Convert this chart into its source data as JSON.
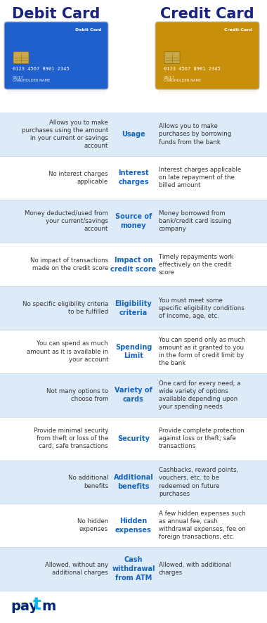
{
  "title_left": "Debit Card",
  "title_right": "Credit Card",
  "title_color": "#1a237e",
  "middle_color": "#1565c0",
  "left_text_color": "#333333",
  "right_text_color": "#333333",
  "rows": [
    {
      "middle": "Usage",
      "left": "Allows you to make\npurchases using the amount\nin your current or savings\naccount",
      "right": "Allows you to make\npurchases by borrowing\nfunds from the bank",
      "bg": "#ddeaf8"
    },
    {
      "middle": "Interest\ncharges",
      "left": "No interest charges\napplicable",
      "right": "Interest charges applicable\non late repayment of the\nbilled amount",
      "bg": "#ffffff"
    },
    {
      "middle": "Source of\nmoney",
      "left": "Money deducted/used from\nyour current/savings\naccount",
      "right": "Money borrowed from\nbank/credit card issuing\ncompany",
      "bg": "#ddeaf8"
    },
    {
      "middle": "Impact on\ncredit score",
      "left": "No impact of transactions\nmade on the credit score",
      "right": "Timely repayments work\neffectively on the credit\nscore",
      "bg": "#ffffff"
    },
    {
      "middle": "Eligibility\ncriteria",
      "left": "No specific eligibility criteria\nto be fulfilled",
      "right": "You must meet some\nspecific eligibility conditions\nof income, age, etc.",
      "bg": "#ddeaf8"
    },
    {
      "middle": "Spending\nLimit",
      "left": "You can spend as much\namount as it is available in\nyour account",
      "right": "You can spend only as much\namount as it granted to you\nin the form of credit limit by\nthe bank",
      "bg": "#ffffff"
    },
    {
      "middle": "Variety of\ncards",
      "left": "Not many options to\nchoose from",
      "right": "One card for every need; a\nwide variety of options\navailable depending upon\nyour spending needs",
      "bg": "#ddeaf8"
    },
    {
      "middle": "Security",
      "left": "Provide minimal security\nfrom theft or loss of the\ncard; safe transactions",
      "right": "Provide complete protection\nagainst loss or theft; safe\ntransactions",
      "bg": "#ffffff"
    },
    {
      "middle": "Additional\nbenefits",
      "left": "No additional\nbenefits",
      "right": "Cashbacks, reward points,\nvouchers, etc. to be\nredeemed on future\npurchases",
      "bg": "#ddeaf8"
    },
    {
      "middle": "Hidden\nexpenses",
      "left": "No hidden\nexpenses",
      "right": "A few hidden expenses such\nas annual fee, cash\nwithdrawal expenses, fee on\nforeign transactions, etc.",
      "bg": "#ffffff"
    },
    {
      "middle": "Cash\nwithdrawal\nfrom ATM",
      "left": "Allowed, without any\nadditional charges",
      "right": "Allowed, with additional\ncharges",
      "bg": "#ddeaf8"
    }
  ],
  "figsize": [
    3.8,
    8.86
  ],
  "dpi": 100
}
